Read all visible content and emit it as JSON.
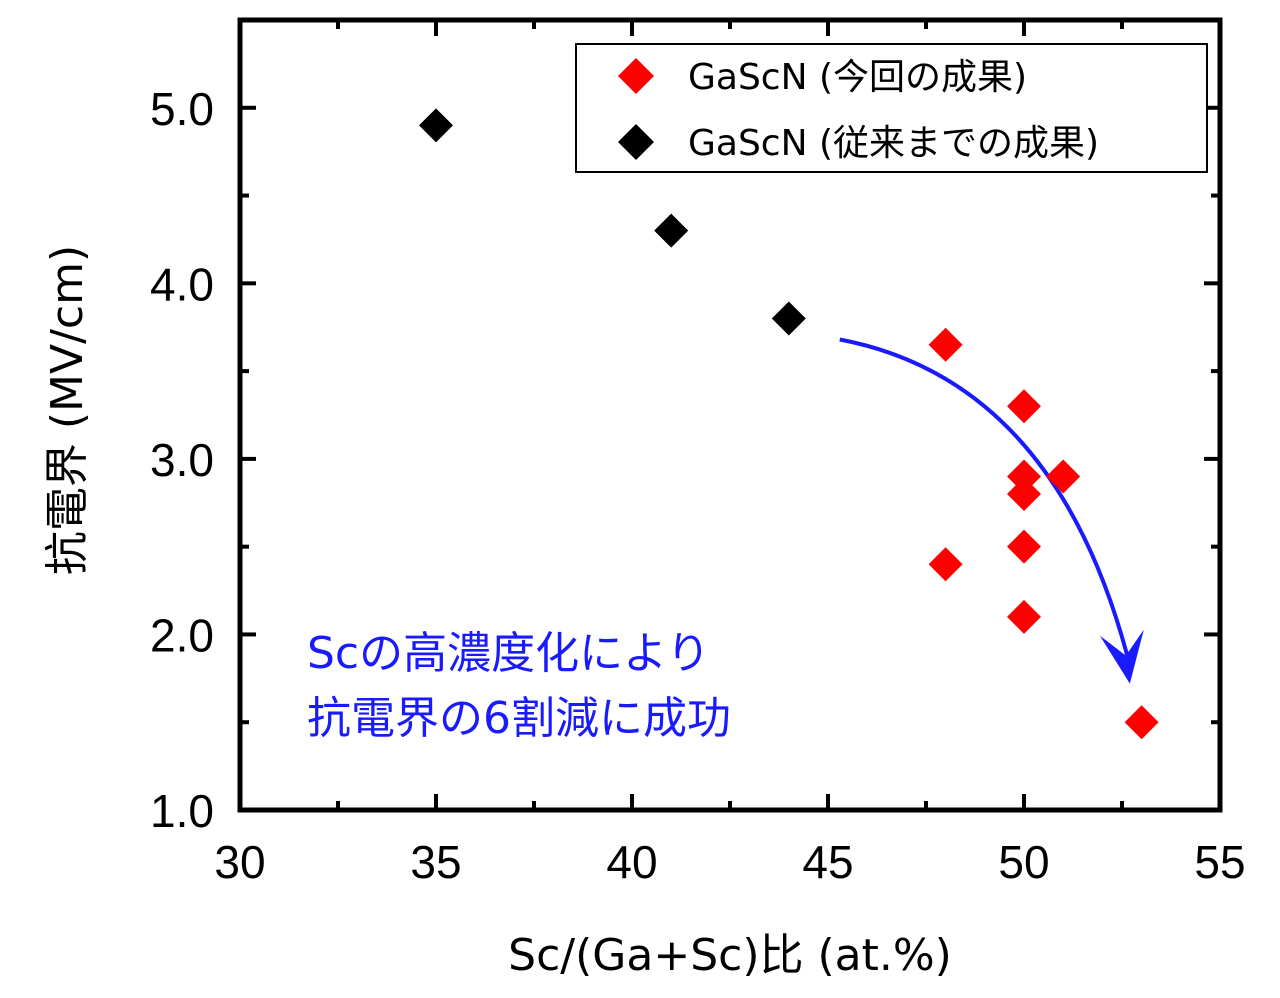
{
  "chart_data": {
    "type": "scatter",
    "title": "",
    "xlabel": "Sc/(Ga+Sc)比 (at.%)",
    "ylabel": "抗電界 (MV/cm)",
    "xlim": [
      30,
      55
    ],
    "ylim": [
      1.0,
      5.5
    ],
    "xticks": [
      30,
      35,
      40,
      45,
      50,
      55
    ],
    "xtick_labels": [
      "30",
      "35",
      "40",
      "45",
      "50",
      "55"
    ],
    "yticks": [
      1.0,
      2.0,
      3.0,
      4.0,
      5.0
    ],
    "ytick_labels": [
      "1.0",
      "2.0",
      "3.0",
      "4.0",
      "5.0"
    ],
    "grid": false,
    "legend_position": "top-right",
    "series": [
      {
        "name": "GaScN (今回の成果)",
        "color": "#ff0000",
        "marker": "diamond",
        "x": [
          48,
          48,
          50,
          50,
          50,
          50,
          50,
          51,
          53
        ],
        "y": [
          3.65,
          2.4,
          3.3,
          2.9,
          2.8,
          2.5,
          2.1,
          2.9,
          1.5
        ]
      },
      {
        "name": "GaScN (従来までの成果)",
        "color": "#000000",
        "marker": "diamond",
        "x": [
          35,
          41,
          44
        ],
        "y": [
          4.9,
          4.3,
          3.8
        ]
      }
    ],
    "annotations": [
      {
        "text": "Scの高濃度化により",
        "color": "#1a1aff"
      },
      {
        "text": "抗電界の6割減に成功",
        "color": "#1a1aff"
      }
    ],
    "arrow": {
      "color": "#1a1aff",
      "from": [
        45.3,
        3.68
      ],
      "to": [
        52.7,
        1.72
      ]
    }
  }
}
